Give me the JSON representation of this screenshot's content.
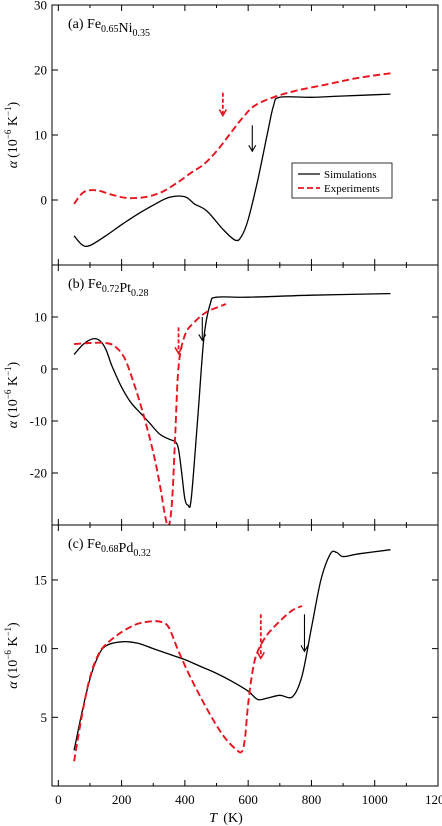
{
  "figure": {
    "x_label": "T",
    "x_unit": "(K)",
    "x_ticks": [
      0,
      200,
      400,
      600,
      800,
      1000,
      1200
    ],
    "xlim": [
      -20,
      1200
    ]
  },
  "legend": {
    "simulations_label": "Simulations",
    "experiments_label": "Experiments"
  },
  "colors": {
    "simulations": "#000000",
    "experiments": "#e8141e"
  },
  "chart_data": [
    {
      "type": "line",
      "panel_label": "(a)",
      "composition": [
        {
          "text": "Fe",
          "sub": "0.65"
        },
        {
          "text": "Ni",
          "sub": "0.35"
        }
      ],
      "ylabel": {
        "symbol": "α",
        "prefix": "(10",
        "exp": "−6",
        "unit": " K",
        "unit_exp": "−1",
        "suffix": ")"
      },
      "ylim": [
        -10,
        30
      ],
      "yticks": [
        0,
        10,
        20,
        30
      ],
      "series": [
        {
          "name": "Simulations",
          "style": "solid",
          "x": [
            50,
            75,
            100,
            150,
            200,
            250,
            300,
            350,
            400,
            430,
            470,
            520,
            560,
            580,
            600,
            630,
            660,
            680,
            700,
            800,
            900,
            1050
          ],
          "y": [
            -5.5,
            -6.9,
            -7.0,
            -5.5,
            -3.8,
            -2.2,
            -0.8,
            0.4,
            0.5,
            -0.6,
            -1.7,
            -4.5,
            -6.2,
            -5.5,
            -3.0,
            3.0,
            10.0,
            14.5,
            15.8,
            15.8,
            16.0,
            16.3
          ]
        },
        {
          "name": "Experiments",
          "style": "dashed",
          "x": [
            50,
            80,
            120,
            170,
            220,
            280,
            330,
            380,
            420,
            460,
            500,
            540,
            580,
            620,
            680,
            750,
            850,
            950,
            1050
          ],
          "y": [
            -0.6,
            1.2,
            1.5,
            0.8,
            0.3,
            0.5,
            1.3,
            2.8,
            4.2,
            5.5,
            7.5,
            10.0,
            12.5,
            14.5,
            15.8,
            16.8,
            17.8,
            18.8,
            19.5
          ]
        }
      ],
      "arrows": [
        {
          "series": "Experiments",
          "x": 520,
          "y_top": 16.5,
          "y_bottom": 13.0
        },
        {
          "series": "Simulations",
          "x": 613,
          "y_top": 11.5,
          "y_bottom": 7.5
        }
      ],
      "legend_shown": true,
      "legend_position": "right, middle"
    },
    {
      "type": "line",
      "panel_label": "(b)",
      "composition": [
        {
          "text": "Fe",
          "sub": "0.72"
        },
        {
          "text": "Pt",
          "sub": "0.28"
        }
      ],
      "ylabel": {
        "symbol": "α",
        "prefix": "(10",
        "exp": "−6",
        "unit": " K",
        "unit_exp": "−1",
        "suffix": ")"
      },
      "ylim": [
        -30,
        20
      ],
      "yticks": [
        -20,
        -10,
        0,
        10
      ],
      "ytick_labels": [
        "-20",
        "-10",
        "0",
        "10"
      ],
      "series": [
        {
          "name": "Simulations",
          "style": "solid",
          "x": [
            50,
            80,
            110,
            130,
            150,
            170,
            200,
            230,
            260,
            290,
            320,
            350,
            370,
            380,
            390,
            400,
            410,
            420,
            440,
            460,
            480,
            500,
            600,
            800,
            1050
          ],
          "y": [
            2.8,
            4.8,
            5.8,
            5.5,
            3.8,
            0.5,
            -3.5,
            -6.5,
            -8.5,
            -10.5,
            -12.5,
            -13.5,
            -14.0,
            -15.5,
            -20.0,
            -25.0,
            -26.2,
            -25.0,
            -10.0,
            6.0,
            12.5,
            13.8,
            13.8,
            14.2,
            14.5
          ]
        },
        {
          "name": "Experiments",
          "style": "dashed",
          "x": [
            50,
            100,
            150,
            180,
            210,
            240,
            270,
            300,
            320,
            340,
            350,
            360,
            370,
            380,
            400,
            430,
            470,
            530
          ],
          "y": [
            4.8,
            5.0,
            5.0,
            4.3,
            2.0,
            -3.0,
            -9.0,
            -16.0,
            -22.0,
            -29.0,
            -30.0,
            -25.0,
            -12.0,
            0.5,
            6.5,
            9.0,
            11.0,
            12.5
          ]
        }
      ],
      "arrows": [
        {
          "series": "Experiments",
          "x": 380,
          "y_top": 8.0,
          "y_bottom": 3.0
        },
        {
          "series": "Simulations",
          "x": 455,
          "y_top": 10.0,
          "y_bottom": 5.5
        }
      ],
      "legend_shown": false
    },
    {
      "type": "line",
      "panel_label": "(c)",
      "composition": [
        {
          "text": "Fe",
          "sub": "0.68"
        },
        {
          "text": "Pd",
          "sub": "0.32"
        }
      ],
      "ylabel": {
        "symbol": "α",
        "prefix": "(10",
        "exp": "−6",
        "unit": " K",
        "unit_exp": "−1",
        "suffix": ")"
      },
      "ylim": [
        0,
        19
      ],
      "yticks": [
        5,
        10,
        15
      ],
      "series": [
        {
          "name": "Simulations",
          "style": "solid",
          "x": [
            50,
            75,
            100,
            125,
            150,
            200,
            250,
            300,
            350,
            400,
            450,
            500,
            550,
            600,
            630,
            660,
            700,
            740,
            770,
            800,
            830,
            860,
            880,
            900,
            950,
            1050
          ],
          "y": [
            2.6,
            5.4,
            7.8,
            9.4,
            10.2,
            10.5,
            10.4,
            10.0,
            9.6,
            9.2,
            8.7,
            8.2,
            7.6,
            6.9,
            6.3,
            6.4,
            6.6,
            6.5,
            8.0,
            11.5,
            15.0,
            16.9,
            17.0,
            16.7,
            16.9,
            17.2
          ]
        },
        {
          "name": "Experiments",
          "style": "dashed",
          "x": [
            50,
            75,
            100,
            125,
            150,
            200,
            250,
            300,
            330,
            350,
            380,
            420,
            470,
            520,
            560,
            580,
            590,
            600,
            615,
            630,
            660,
            700,
            740,
            770
          ],
          "y": [
            1.8,
            5.2,
            7.9,
            9.5,
            10.3,
            11.2,
            11.8,
            12.0,
            11.9,
            11.5,
            9.8,
            7.8,
            5.6,
            3.7,
            2.7,
            2.5,
            3.5,
            6.0,
            8.5,
            9.8,
            11.0,
            12.0,
            12.8,
            13.1
          ]
        }
      ],
      "arrows": [
        {
          "series": "Experiments",
          "x": 640,
          "y_top": 12.5,
          "y_bottom": 9.3
        },
        {
          "series": "Simulations",
          "x": 778,
          "y_top": 12.5,
          "y_bottom": 9.8
        }
      ],
      "legend_shown": false
    }
  ]
}
